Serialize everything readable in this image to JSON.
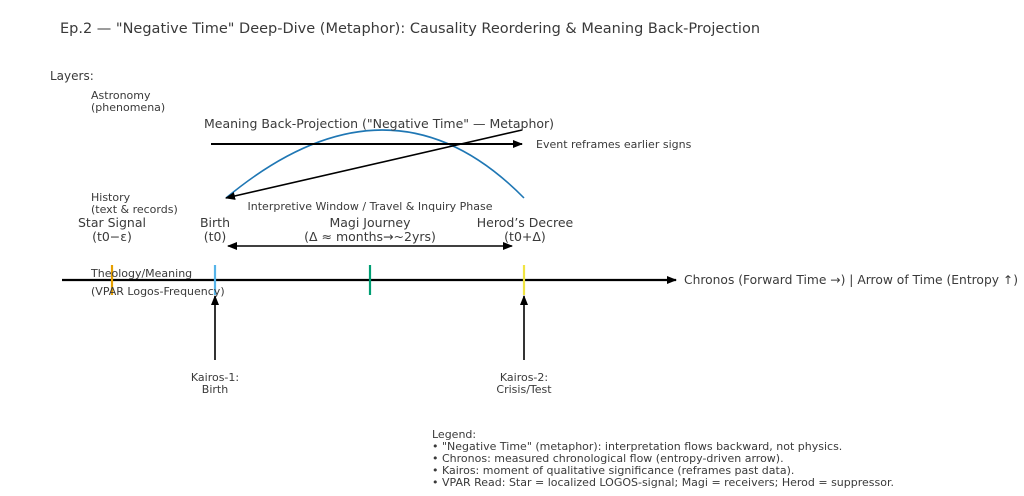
{
  "title": "Ep.2 — \"Negative Time\" Deep-Dive (Metaphor): Causality Reordering & Meaning Back-Projection",
  "layers_label": "Layers:",
  "layers": [
    {
      "line1": "Astronomy",
      "line2": "(phenomena)"
    },
    {
      "line1": "History",
      "line2": "(text & records)"
    },
    {
      "line1": "Theology/Meaning",
      "line2": "(VPAR Logos-Frequency)"
    }
  ],
  "back_projection": {
    "label": "Meaning Back-Projection (\"Negative Time\" — Metaphor)",
    "note": "Event reframes earlier signs",
    "arc_color": "#1f77b4"
  },
  "interpretive_window": "Interpretive Window / Travel & Inquiry Phase",
  "events": [
    {
      "name": "Star Signal",
      "time": "(t0−ε)",
      "color": "#e69f00"
    },
    {
      "name": "Birth",
      "time": "(t0)",
      "color": "#56b4e9"
    },
    {
      "name": "Magi Journey",
      "time": "(Δ ≈ months→~2yrs)",
      "color": "#009e73"
    },
    {
      "name": "Herod’s Decree",
      "time": "(t0+Δ)",
      "color": "#f0e442"
    }
  ],
  "axis_label": "Chronos (Forward Time →)  |  Arrow of Time (Entropy ↑)",
  "kairos": [
    {
      "line1": "Kairos-1:",
      "line2": "Birth"
    },
    {
      "line1": "Kairos-2:",
      "line2": "Crisis/Test"
    }
  ],
  "legend": {
    "title": "Legend:",
    "items": [
      "• \"Negative Time\" (metaphor): interpretation flows backward, not physics.",
      "• Chronos: measured chronological flow (entropy-driven arrow).",
      "• Kairos: moment of qualitative significance (reframes past data).",
      "• VPAR Read: Star = localized LOGOS-signal; Magi = receivers; Herod = suppressor."
    ]
  }
}
